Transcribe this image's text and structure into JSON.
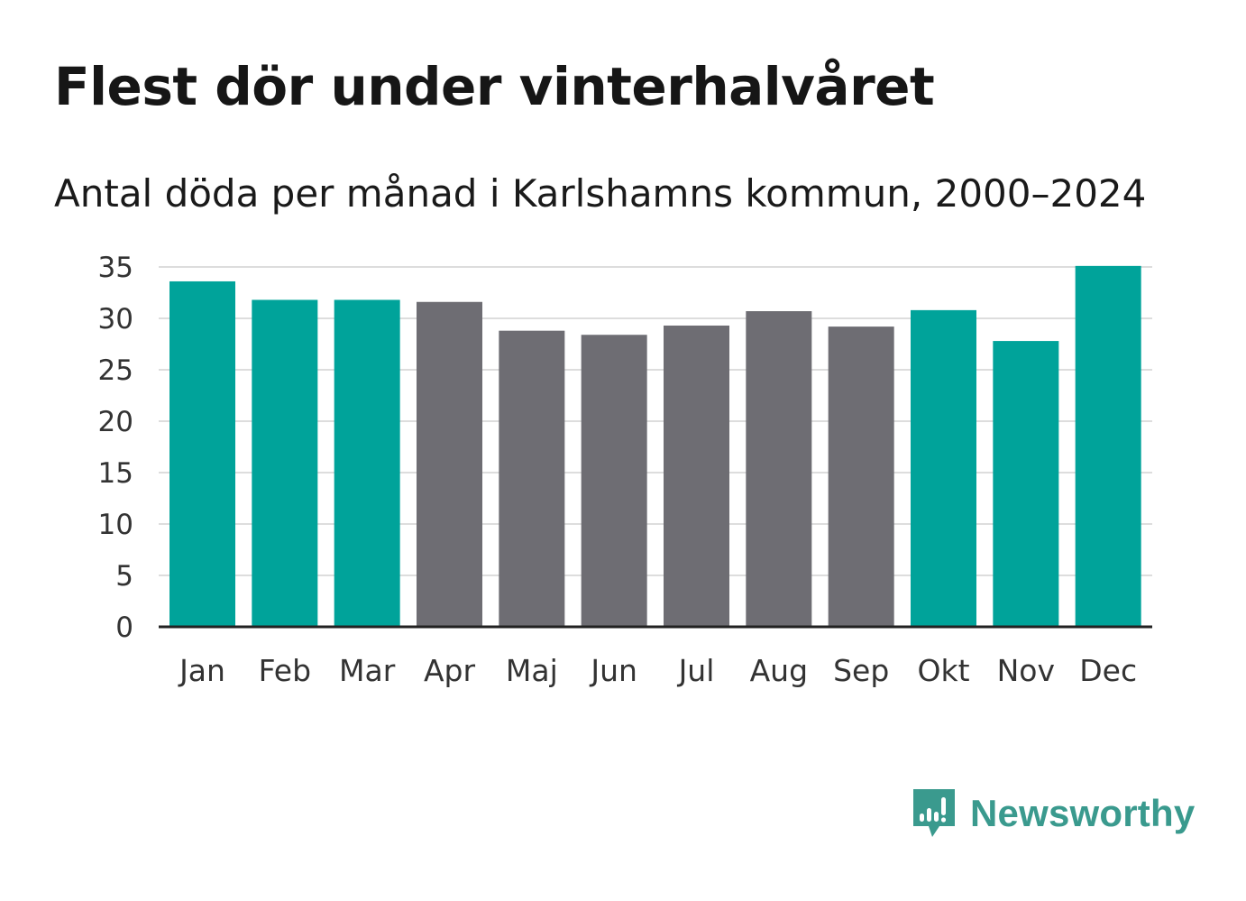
{
  "title": "Flest dör under vinterhalvåret",
  "subtitle": "Antal döda per månad i Karlshamns kommun, 2000–2024",
  "brand": {
    "name": "Newsworthy",
    "icon": "newsworthy-logo-icon",
    "color": "#3a9a8e"
  },
  "colors": {
    "winter": "#00a39a",
    "summer": "#6e6d73",
    "grid": "#dddddd",
    "axis": "#222222",
    "text": "#333333"
  },
  "chart_data": {
    "type": "bar",
    "title": "Flest dör under vinterhalvåret",
    "subtitle": "Antal döda per månad i Karlshamns kommun, 2000–2024",
    "xlabel": "",
    "ylabel": "",
    "ylim": [
      0,
      35
    ],
    "yticks": [
      0,
      5,
      10,
      15,
      20,
      25,
      30,
      35
    ],
    "grid": true,
    "categories": [
      "Jan",
      "Feb",
      "Mar",
      "Apr",
      "Maj",
      "Jun",
      "Jul",
      "Aug",
      "Sep",
      "Okt",
      "Nov",
      "Dec"
    ],
    "values": [
      33.6,
      31.8,
      31.8,
      31.6,
      28.8,
      28.4,
      29.3,
      30.7,
      29.2,
      30.8,
      27.8,
      35.1
    ],
    "groups": [
      "winter",
      "winter",
      "winter",
      "summer",
      "summer",
      "summer",
      "summer",
      "summer",
      "summer",
      "winter",
      "winter",
      "winter"
    ]
  }
}
